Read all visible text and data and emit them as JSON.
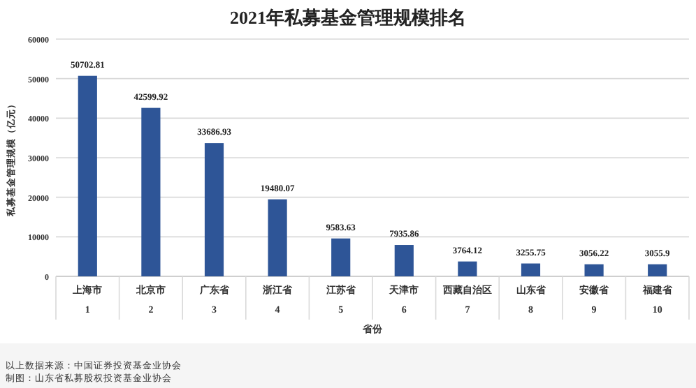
{
  "chart_data": {
    "type": "bar",
    "title": "2021年私募基金管理规模排名",
    "xlabel": "省份",
    "ylabel": "私募基金管理规模（亿元）",
    "categories": [
      "上海市\n1",
      "北京市\n2",
      "广东省\n3",
      "浙江省\n4",
      "江苏省\n5",
      "天津市\n6",
      "西藏自治区\n7",
      "山东省\n8",
      "安徽省\n9",
      "福建省\n10"
    ],
    "values": [
      50702.81,
      42599.92,
      33686.93,
      19480.07,
      9583.63,
      7935.86,
      3764.12,
      3255.75,
      3056.22,
      3055.9
    ],
    "color": "#2e5597",
    "ylim": [
      0,
      60000
    ],
    "yticks": [
      0,
      10000,
      20000,
      30000,
      40000,
      50000,
      60000
    ],
    "grid": "y",
    "data_labels": true,
    "annotations": [
      "以上数据来源：中国证券投资基金业协会",
      "制图：山东省私募股权投资基金业协会"
    ]
  }
}
